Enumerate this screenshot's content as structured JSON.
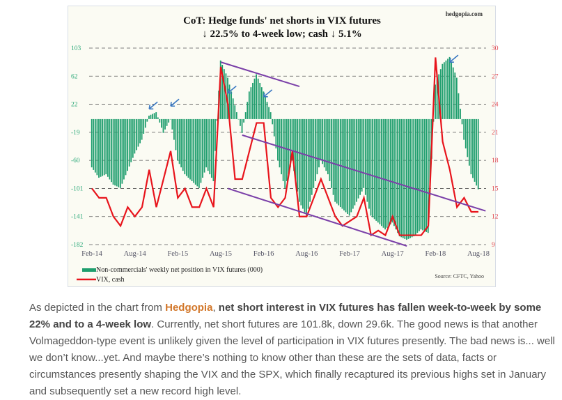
{
  "chart_data": {
    "type": "bar+line",
    "title": "CoT: Hedge funds' net shorts in VIX futures",
    "subtitle": "↓ 22.5% to 4-week low; cash ↓ 5.1%",
    "brand": "hedgopia.com",
    "source": "Source: CFTC, Yahoo",
    "left_axis": {
      "ticks": [
        "103",
        "62",
        "22",
        "-19",
        "-60",
        "-101",
        "-141",
        "-182"
      ],
      "range": [
        -182,
        103
      ]
    },
    "right_axis": {
      "ticks": [
        "30",
        "27",
        "24",
        "21",
        "18",
        "15",
        "12",
        "9"
      ],
      "range": [
        9,
        30
      ]
    },
    "x_ticks": [
      "Feb-14",
      "Aug-14",
      "Feb-15",
      "Aug-15",
      "Feb-16",
      "Aug-16",
      "Feb-17",
      "Aug-17",
      "Feb-18",
      "Aug-18"
    ],
    "grid": "horizontal dashed",
    "x": [
      "Feb-14",
      "Mar-14",
      "Apr-14",
      "May-14",
      "Jun-14",
      "Jul-14",
      "Aug-14",
      "Sep-14",
      "Oct-14",
      "Nov-14",
      "Dec-14",
      "Jan-15",
      "Feb-15",
      "Mar-15",
      "Apr-15",
      "May-15",
      "Jun-15",
      "Jul-15",
      "Aug-15",
      "Sep-15",
      "Oct-15",
      "Nov-15",
      "Dec-15",
      "Jan-16",
      "Feb-16",
      "Mar-16",
      "Apr-16",
      "May-16",
      "Jun-16",
      "Jul-16",
      "Aug-16",
      "Sep-16",
      "Oct-16",
      "Nov-16",
      "Dec-16",
      "Jan-17",
      "Feb-17",
      "Mar-17",
      "Apr-17",
      "May-17",
      "Jun-17",
      "Jul-17",
      "Aug-17",
      "Sep-17",
      "Oct-17",
      "Nov-17",
      "Dec-17",
      "Jan-18",
      "Feb-18",
      "Mar-18",
      "Apr-18",
      "May-18",
      "Jun-18",
      "Jul-18",
      "Aug-18"
    ],
    "series": [
      {
        "name": "Non-commercials' weekly net position in VIX futures (000)",
        "type": "bar",
        "axis": "left",
        "color": "#1f9e6e",
        "values": [
          -70,
          -85,
          -80,
          -95,
          -100,
          -75,
          -50,
          -30,
          5,
          10,
          -20,
          0,
          -60,
          -80,
          -90,
          -100,
          -70,
          -90,
          85,
          60,
          20,
          -20,
          40,
          65,
          40,
          10,
          -60,
          -100,
          -60,
          -120,
          -140,
          -100,
          -60,
          -80,
          -120,
          -130,
          -140,
          -120,
          -100,
          -140,
          -150,
          -160,
          -150,
          -170,
          -175,
          -170,
          -160,
          -165,
          50,
          80,
          90,
          60,
          -30,
          -80,
          -101.8
        ]
      },
      {
        "name": "VIX, cash",
        "type": "line",
        "axis": "right",
        "color": "#e8141c",
        "values": [
          15,
          14,
          14,
          12,
          11,
          13,
          12,
          13,
          17,
          13,
          16,
          19,
          14,
          15,
          13,
          13,
          15,
          13,
          28,
          24,
          16,
          16,
          19,
          22,
          22,
          14,
          13,
          14,
          19,
          12,
          12,
          14,
          16,
          14,
          12,
          11,
          11.5,
          12,
          14,
          10,
          10.5,
          10,
          12,
          10,
          10,
          10,
          10,
          11,
          29,
          20,
          17,
          13,
          14,
          12.5,
          12.5
        ]
      }
    ],
    "trendlines": [
      {
        "from": [
          "Aug-15",
          28.5
        ],
        "to": [
          "Jul-16",
          25.9
        ],
        "color": "#7a3fa8"
      },
      {
        "from": [
          "Nov-15",
          20.7
        ],
        "to": [
          "Sep-18",
          12.6
        ],
        "color": "#7a3fa8"
      },
      {
        "from": [
          "Sep-15",
          15
        ],
        "to": [
          "Oct-17",
          8.85
        ],
        "color": "#7a3fa8"
      }
    ],
    "arrows": [
      {
        "at": [
          "Oct-14",
          23.5
        ]
      },
      {
        "at": [
          "Jan-15",
          23.8
        ]
      },
      {
        "at": [
          "Sep-15",
          25.2
        ]
      },
      {
        "at": [
          "Feb-16",
          24.8
        ]
      },
      {
        "at": [
          "Apr-18",
          28.5
        ]
      }
    ],
    "legend_placement": "bottom-left"
  },
  "article": {
    "p1": "As depicted in the chart from ",
    "link": "Hedgopia",
    "p2": ", ",
    "bold": "net short interest in VIX futures has fallen week-to-week by some 22% and to a 4-week low",
    "p3": ". Currently, net short futures are 101.8k, down 29.6k. The good news is that another Volmageddon-type event is unlikely given the level of participation in VIX futures presently. The bad news is... well we don’t know...yet. And maybe there’s nothing to know other than these are the sets of data, facts or circumstances presently shaping the VIX and the SPX, which finally recaptured its previous highs set in January and subsequently set a new record high level."
  }
}
